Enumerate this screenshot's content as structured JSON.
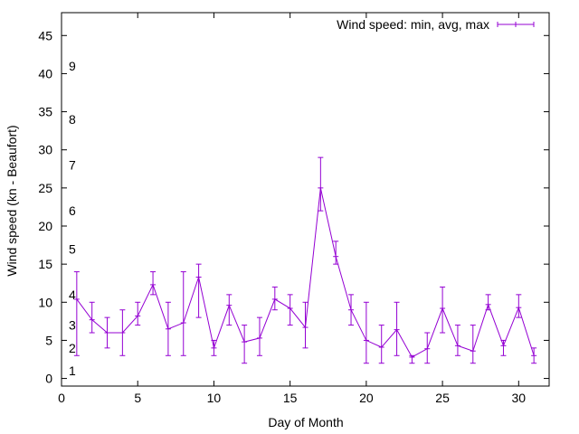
{
  "chart_data": {
    "type": "line",
    "title": "",
    "xlabel": "Day of Month",
    "ylabel": "Wind speed (kn - Beaufort)",
    "xlim": [
      0,
      32
    ],
    "ylim": [
      -1,
      48
    ],
    "x_ticks": [
      0,
      5,
      10,
      15,
      20,
      25,
      30
    ],
    "y_ticks": [
      0,
      5,
      10,
      15,
      20,
      25,
      30,
      35,
      40,
      45
    ],
    "grid": false,
    "legend": "top-right",
    "series": [
      {
        "name": "Wind speed: min, avg, max",
        "color": "#9400d3",
        "points": [
          {
            "x": 1,
            "min": 3,
            "avg": 10.4,
            "max": 14
          },
          {
            "x": 2,
            "min": 6,
            "avg": 7.7,
            "max": 10
          },
          {
            "x": 3,
            "min": 4,
            "avg": 6.0,
            "max": 8
          },
          {
            "x": 4,
            "min": 3,
            "avg": 6.0,
            "max": 9
          },
          {
            "x": 5,
            "min": 7,
            "avg": 8.2,
            "max": 10
          },
          {
            "x": 6,
            "min": 11,
            "avg": 12.3,
            "max": 14
          },
          {
            "x": 7,
            "min": 3,
            "avg": 6.5,
            "max": 10
          },
          {
            "x": 8,
            "min": 3,
            "avg": 7.3,
            "max": 14
          },
          {
            "x": 9,
            "min": 8,
            "avg": 13.3,
            "max": 15
          },
          {
            "x": 10,
            "min": 3,
            "avg": 4.0,
            "max": 5
          },
          {
            "x": 11,
            "min": 7,
            "avg": 9.6,
            "max": 11
          },
          {
            "x": 12,
            "min": 2,
            "avg": 4.8,
            "max": 7
          },
          {
            "x": 13,
            "min": 3,
            "avg": 5.3,
            "max": 8
          },
          {
            "x": 14,
            "min": 9,
            "avg": 10.4,
            "max": 12
          },
          {
            "x": 15,
            "min": 7,
            "avg": 9.2,
            "max": 11
          },
          {
            "x": 16,
            "min": 4,
            "avg": 6.7,
            "max": 10
          },
          {
            "x": 17,
            "min": 22,
            "avg": 25.0,
            "max": 29
          },
          {
            "x": 18,
            "min": 15,
            "avg": 16.0,
            "max": 18
          },
          {
            "x": 19,
            "min": 7,
            "avg": 9.0,
            "max": 11
          },
          {
            "x": 20,
            "min": 2,
            "avg": 5.0,
            "max": 10
          },
          {
            "x": 21,
            "min": 2,
            "avg": 4.1,
            "max": 7
          },
          {
            "x": 22,
            "min": 3,
            "avg": 6.4,
            "max": 10
          },
          {
            "x": 23,
            "min": 2,
            "avg": 2.8,
            "max": 3
          },
          {
            "x": 24,
            "min": 2,
            "avg": 3.9,
            "max": 6
          },
          {
            "x": 25,
            "min": 6,
            "avg": 9.2,
            "max": 12
          },
          {
            "x": 26,
            "min": 3,
            "avg": 4.3,
            "max": 7
          },
          {
            "x": 27,
            "min": 2,
            "avg": 3.6,
            "max": 7
          },
          {
            "x": 28,
            "min": 9,
            "avg": 9.7,
            "max": 11
          },
          {
            "x": 29,
            "min": 3,
            "avg": 4.3,
            "max": 5
          },
          {
            "x": 30,
            "min": 8,
            "avg": 9.3,
            "max": 11
          },
          {
            "x": 31,
            "min": 2,
            "avg": 3.0,
            "max": 4
          }
        ]
      }
    ],
    "annotations": [
      {
        "text": "1",
        "y": 1
      },
      {
        "text": "2",
        "y": 4
      },
      {
        "text": "3",
        "y": 7
      },
      {
        "text": "4",
        "y": 11
      },
      {
        "text": "5",
        "y": 17
      },
      {
        "text": "6",
        "y": 22
      },
      {
        "text": "7",
        "y": 28
      },
      {
        "text": "8",
        "y": 34
      },
      {
        "text": "9",
        "y": 41
      }
    ]
  }
}
